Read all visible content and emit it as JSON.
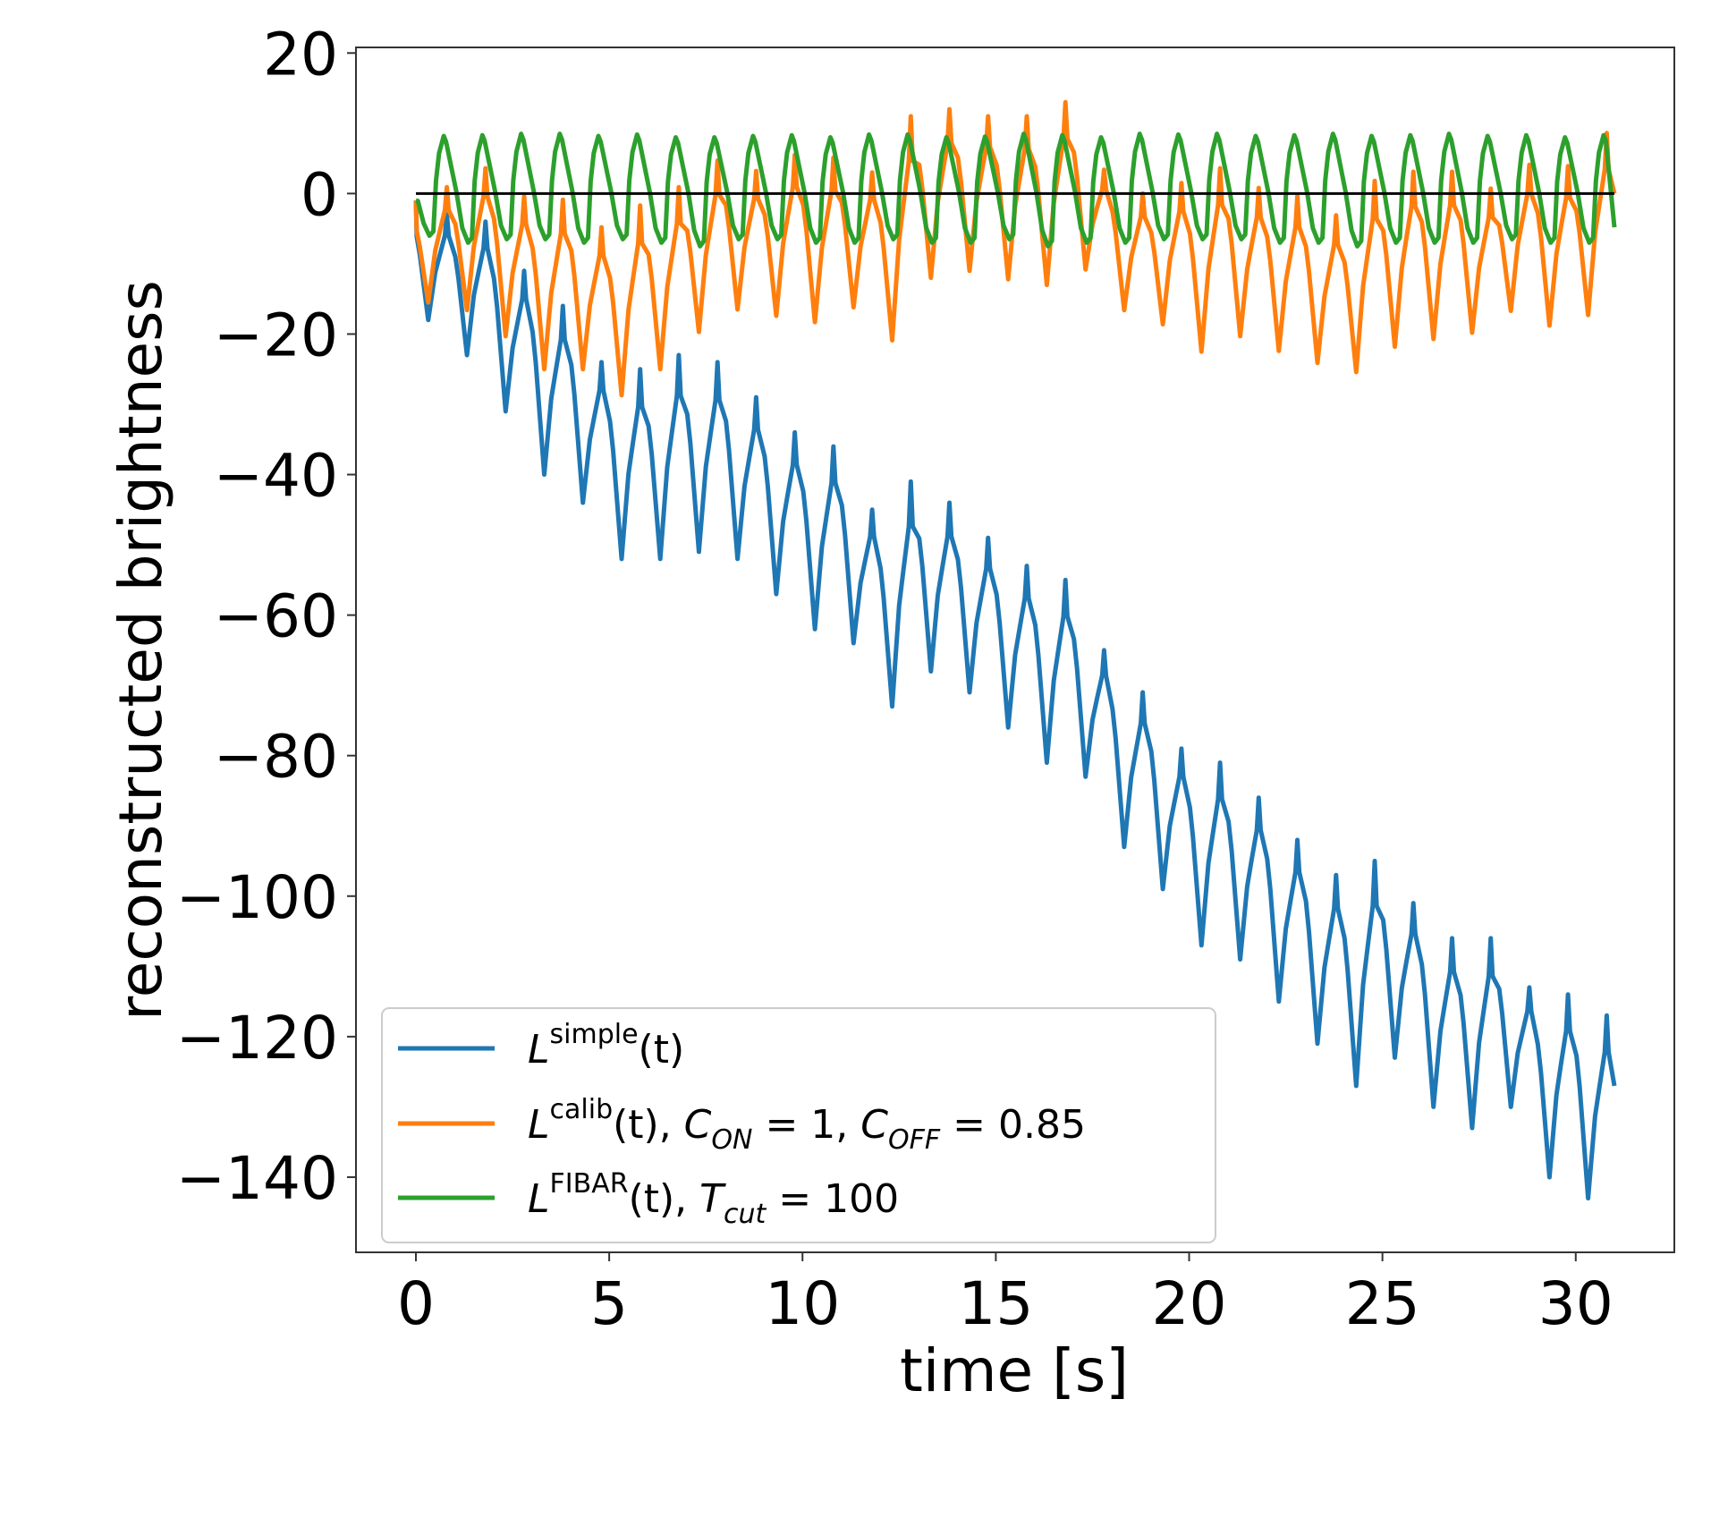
{
  "chart_data": {
    "type": "line",
    "title": "",
    "xlabel": "time [s]",
    "ylabel": "reconstructed brightness",
    "xlim": [
      -1.55,
      32.55
    ],
    "ylim": [
      -150.7,
      20.8
    ],
    "xticks": [
      0,
      5,
      10,
      15,
      20,
      25,
      30
    ],
    "xtick_labels": [
      "0",
      "5",
      "10",
      "15",
      "20",
      "25",
      "30"
    ],
    "yticks": [
      20,
      0,
      -20,
      -40,
      -60,
      -80,
      -100,
      -120,
      -140
    ],
    "ytick_labels": [
      "20",
      "0",
      "−20",
      "−40",
      "−60",
      "−80",
      "−100",
      "−120",
      "−140"
    ],
    "grid": false,
    "legend_position": "lower-left",
    "reference_line": {
      "y": 0,
      "x_range": [
        0,
        31
      ],
      "color": "#000000"
    },
    "period_s": 1.0,
    "trough_phase_s": 0.32,
    "peak_phase_s": 0.8,
    "series": [
      {
        "name": "L^simple(t)",
        "legend": {
          "base": "L",
          "sup": "simple",
          "rest": "(t)"
        },
        "color": "#1f77b4",
        "start": [
          0,
          -1
        ],
        "end": [
          31.0,
          -127
        ],
        "troughs": [
          -18,
          -23,
          -31,
          -40,
          -44,
          -52,
          -52,
          -51,
          -52,
          -57,
          -62,
          -64,
          -73,
          -68,
          -71,
          -76,
          -81,
          -83,
          -93,
          -99,
          -107,
          -109,
          -115,
          -121,
          -127,
          -123,
          -130,
          -133,
          -130,
          -140,
          -143
        ],
        "peaks": [
          -3,
          -4,
          -11,
          -16,
          -24,
          -25,
          -23,
          -24,
          -29,
          -34,
          -36,
          -45,
          -41,
          -44,
          -49,
          -53,
          -55,
          -65,
          -71,
          -79,
          -81,
          -86,
          -92,
          -97,
          -95,
          -101,
          -106,
          -106,
          -113,
          -114,
          -117
        ]
      },
      {
        "name": "L^calib(t), C_ON = 1, C_OFF = 0.85",
        "legend": {
          "base": "L",
          "sup": "calib",
          "rest": "(t), ",
          "c1": "C",
          "c1sub": "ON",
          "c1rest": " = 1, ",
          "c2": "C",
          "c2sub": "OFF",
          "c2rest": " = 0.85"
        },
        "color": "#ff7f0e",
        "start": [
          0,
          -1
        ],
        "end": [
          31.0,
          0
        ],
        "troughs": [
          -15.5,
          -16.6,
          -20.3,
          -25,
          -25,
          -28.7,
          -25,
          -19.7,
          -16.5,
          -17.4,
          -18.3,
          -16.2,
          -20.9,
          -12,
          -11,
          -12.2,
          -13,
          -10.8,
          -16.6,
          -18.6,
          -22.5,
          -20.3,
          -22.4,
          -24.1,
          -25.4,
          -21.8,
          -20.7,
          -19.8,
          -16.7,
          -18.8,
          -17.3
        ],
        "peaks": [
          0.9,
          3.6,
          -0.4,
          -0.9,
          -4.8,
          -1.7,
          0.9,
          4.7,
          3.2,
          5.5,
          5.1,
          3.0,
          11,
          12,
          11,
          11,
          13,
          3.4,
          0,
          1.5,
          3.6,
          0.8,
          -0.4,
          -3.1,
          1.8,
          3.1,
          3.1,
          0.7,
          4.1,
          3.9,
          8.6
        ]
      },
      {
        "name": "L^FIBAR(t), T_cut = 100",
        "legend": {
          "base": "L",
          "sup": "FIBAR",
          "rest": "(t), ",
          "c1": "T",
          "c1sub": "cut",
          "c1rest": " = 100"
        },
        "color": "#2ca02c",
        "start": [
          0,
          -1
        ],
        "end": [
          31.0,
          -4.8
        ],
        "troughs": [
          -6,
          -7,
          -6.5,
          -6.5,
          -7,
          -6.5,
          -7,
          -7.5,
          -6.5,
          -6.5,
          -7,
          -7,
          -6.5,
          -7,
          -7,
          -6.5,
          -7.5,
          -7,
          -7,
          -6.5,
          -6.5,
          -6.5,
          -7,
          -7,
          -7.5,
          -7,
          -7,
          -7,
          -6.5,
          -7,
          -7
        ],
        "peaks": [
          8.2,
          8.3,
          8.5,
          8.5,
          8.2,
          8.4,
          8.0,
          8.0,
          8.2,
          8.3,
          8.0,
          8.4,
          8.4,
          8.0,
          8.1,
          8.5,
          8.3,
          8.0,
          8.5,
          8.4,
          8.5,
          8.2,
          8.3,
          8.5,
          8.2,
          8.3,
          8.5,
          8.2,
          8.3,
          8.0,
          8.3
        ]
      }
    ]
  }
}
